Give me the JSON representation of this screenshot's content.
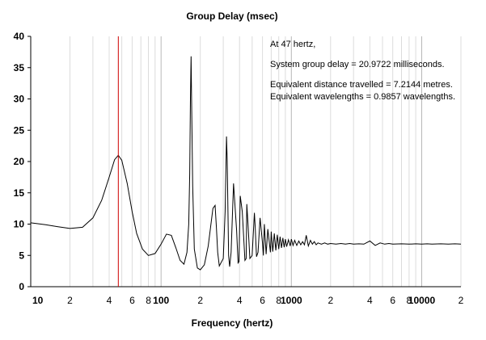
{
  "chart_data": {
    "type": "line",
    "title": "Group Delay (msec)",
    "xlabel": "Frequency (hertz)",
    "ylabel": "",
    "xscale": "log",
    "xlim": [
      10,
      20000
    ],
    "ylim": [
      0,
      40
    ],
    "grid": true,
    "x_tick_labels": [
      {
        "value": 10,
        "label": "10",
        "bold": true
      },
      {
        "value": 20,
        "label": "2"
      },
      {
        "value": 40,
        "label": "4"
      },
      {
        "value": 60,
        "label": "6"
      },
      {
        "value": 80,
        "label": "8"
      },
      {
        "value": 100,
        "label": "100",
        "bold": true
      },
      {
        "value": 200,
        "label": "2"
      },
      {
        "value": 400,
        "label": "4"
      },
      {
        "value": 600,
        "label": "6"
      },
      {
        "value": 800,
        "label": "8"
      },
      {
        "value": 1000,
        "label": "1000",
        "bold": true
      },
      {
        "value": 2000,
        "label": "2"
      },
      {
        "value": 4000,
        "label": "4"
      },
      {
        "value": 6000,
        "label": "6"
      },
      {
        "value": 8000,
        "label": "8"
      },
      {
        "value": 10000,
        "label": "10000",
        "bold": true
      },
      {
        "value": 20000,
        "label": "2"
      }
    ],
    "y_ticks": [
      0,
      5,
      10,
      15,
      20,
      25,
      30,
      35,
      40
    ],
    "marker": {
      "x": 47,
      "color": "#cc0000"
    },
    "annotation": [
      "At 47 hertz,",
      "System group delay = 20.9722 milliseconds.",
      "Equivalent distance travelled = 7.2144 metres.",
      "Equivalent wavelengths = 0.9857 wavelengths."
    ],
    "series": [
      {
        "color": "#000000",
        "x": [
          10,
          13,
          16,
          20,
          25,
          30,
          35,
          40,
          44,
          47,
          50,
          55,
          60,
          65,
          72,
          80,
          90,
          100,
          110,
          120,
          130,
          140,
          150,
          158,
          163,
          166,
          168,
          170,
          172,
          175,
          180,
          190,
          200,
          215,
          230,
          250,
          260,
          266,
          272,
          280,
          300,
          310,
          318,
          322,
          326,
          330,
          336,
          345,
          360,
          380,
          390,
          396,
          405,
          420,
          440,
          450,
          455,
          465,
          480,
          500,
          520,
          528,
          540,
          555,
          575,
          600,
          610,
          620,
          640,
          660,
          690,
          700,
          720,
          740,
          760,
          780,
          800,
          820,
          840,
          860,
          880,
          900,
          920,
          950,
          980,
          1000,
          1030,
          1060,
          1100,
          1140,
          1180,
          1220,
          1260,
          1300,
          1350,
          1400,
          1450,
          1500,
          1550,
          1600,
          1700,
          1800,
          1900,
          2000,
          2200,
          2400,
          2600,
          2800,
          3000,
          3300,
          3600,
          4000,
          4400,
          4800,
          5200,
          5600,
          6000,
          7000,
          8000,
          9000,
          10000,
          11000,
          12000,
          14000,
          16000,
          18000,
          20000
        ],
        "y": [
          10.2,
          9.9,
          9.6,
          9.3,
          9.5,
          11.0,
          13.8,
          17.5,
          20.3,
          21.0,
          20.2,
          16.5,
          12.0,
          8.5,
          6.0,
          5.0,
          5.3,
          6.8,
          8.4,
          8.2,
          6.2,
          4.2,
          3.6,
          5.5,
          10.0,
          18.0,
          30.0,
          36.8,
          28.0,
          16.0,
          6.0,
          3.0,
          2.7,
          3.5,
          6.5,
          12.5,
          13.0,
          9.5,
          5.5,
          3.3,
          4.5,
          12.0,
          24.0,
          20.0,
          12.0,
          5.0,
          3.2,
          5.5,
          16.5,
          9.0,
          3.8,
          4.0,
          14.5,
          12.0,
          4.2,
          4.5,
          13.2,
          10.0,
          4.5,
          5.0,
          11.8,
          9.5,
          4.8,
          5.5,
          11.0,
          7.0,
          5.0,
          10.0,
          5.2,
          9.2,
          5.5,
          8.8,
          5.6,
          8.5,
          5.8,
          8.3,
          6.0,
          8.0,
          6.2,
          7.8,
          6.3,
          7.6,
          6.4,
          7.5,
          6.5,
          7.6,
          6.6,
          7.4,
          6.6,
          7.3,
          6.7,
          7.2,
          6.7,
          8.2,
          6.5,
          7.4,
          6.8,
          7.2,
          6.7,
          7.0,
          6.8,
          7.0,
          6.8,
          6.9,
          6.8,
          6.9,
          6.8,
          6.9,
          6.8,
          6.85,
          6.8,
          7.3,
          6.6,
          7.0,
          6.8,
          6.9,
          6.8,
          6.85,
          6.8,
          6.85,
          6.8,
          6.85,
          6.8,
          6.85,
          6.8,
          6.85,
          6.8
        ]
      }
    ]
  }
}
